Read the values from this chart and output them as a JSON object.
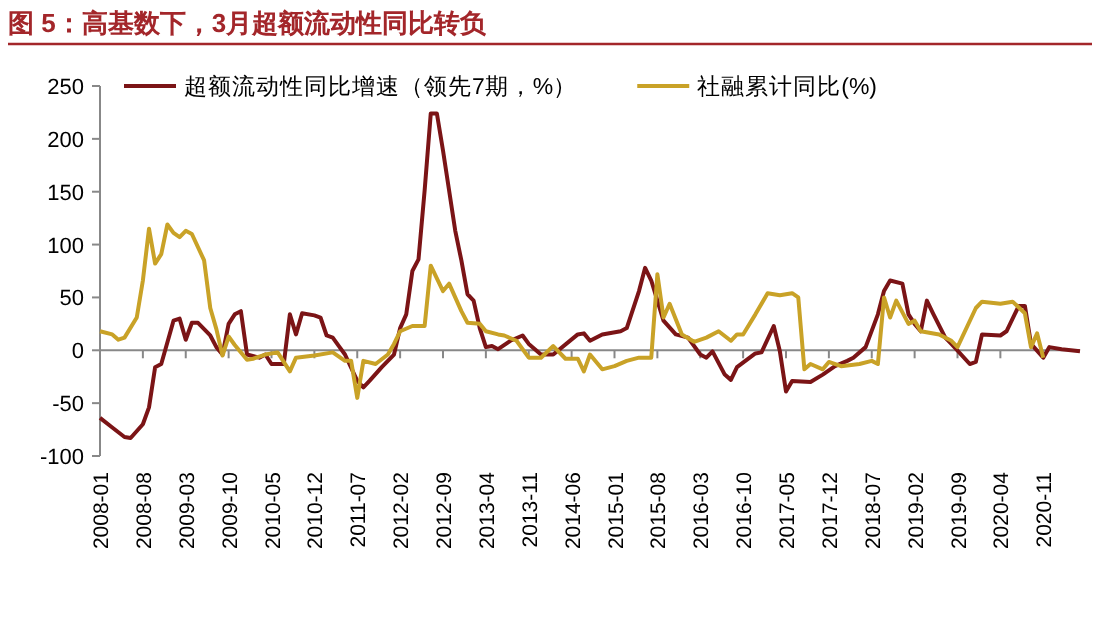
{
  "chart_data": {
    "type": "line",
    "title": "图 5：高基数下，3月超额流动性同比转负",
    "xlim": [
      "2008-01",
      "2021-05"
    ],
    "ylim": [
      -100,
      250
    ],
    "yticks": [
      -100,
      -50,
      0,
      50,
      100,
      150,
      200,
      250
    ],
    "xticks": [
      "2008-01",
      "2008-08",
      "2009-03",
      "2009-10",
      "2010-05",
      "2010-12",
      "2011-07",
      "2012-02",
      "2012-09",
      "2013-04",
      "2013-11",
      "2014-06",
      "2015-01",
      "2015-08",
      "2016-03",
      "2016-10",
      "2017-05",
      "2017-12",
      "2018-07",
      "2019-02",
      "2019-09",
      "2020-04",
      "2020-11"
    ],
    "legend": "top",
    "series": [
      {
        "name": "超额流动性同比增速（领先7期，%）",
        "color": "#7b1416",
        "x": [
          "2008-01",
          "2008-03",
          "2008-05",
          "2008-06",
          "2008-08",
          "2008-09",
          "2008-10",
          "2008-11",
          "2009-01",
          "2009-02",
          "2009-03",
          "2009-04",
          "2009-05",
          "2009-07",
          "2009-08",
          "2009-09",
          "2009-10",
          "2009-11",
          "2009-12",
          "2010-01",
          "2010-03",
          "2010-04",
          "2010-05",
          "2010-07",
          "2010-08",
          "2010-09",
          "2010-10",
          "2010-12",
          "2011-01",
          "2011-02",
          "2011-03",
          "2011-04",
          "2011-05",
          "2011-07",
          "2011-08",
          "2011-09",
          "2011-11",
          "2012-01",
          "2012-02",
          "2012-03",
          "2012-04",
          "2012-05",
          "2012-06",
          "2012-07",
          "2012-08",
          "2012-09",
          "2012-11",
          "2012-12",
          "2013-01",
          "2013-02",
          "2013-03",
          "2013-04",
          "2013-05",
          "2013-06",
          "2013-08",
          "2013-10",
          "2013-11",
          "2014-01",
          "2014-03",
          "2014-07",
          "2014-08",
          "2014-09",
          "2014-11",
          "2015-02",
          "2015-03",
          "2015-05",
          "2015-06",
          "2015-07",
          "2015-09",
          "2015-11",
          "2016-01",
          "2016-03",
          "2016-04",
          "2016-05",
          "2016-07",
          "2016-08",
          "2016-09",
          "2016-12",
          "2017-01",
          "2017-03",
          "2017-04",
          "2017-05",
          "2017-06",
          "2017-09",
          "2017-11",
          "2018-01",
          "2018-03",
          "2018-04",
          "2018-06",
          "2018-08",
          "2018-09",
          "2018-10",
          "2018-12",
          "2019-01",
          "2019-02",
          "2019-03",
          "2019-04",
          "2019-05",
          "2019-07",
          "2019-08",
          "2019-11",
          "2019-12",
          "2020-01",
          "2020-04",
          "2020-05",
          "2020-07",
          "2020-08",
          "2020-09",
          "2020-11",
          "2020-12",
          "2021-02",
          "2021-05"
        ],
        "values": [
          -64,
          -73,
          -82,
          -83,
          -70,
          -54,
          -16,
          -13,
          28,
          30,
          10,
          26,
          26,
          14,
          3,
          -4,
          25,
          34,
          37,
          -4,
          -7,
          -4,
          -13,
          -13,
          34,
          15,
          35,
          33,
          31,
          14,
          12,
          4,
          -4,
          -29,
          -35,
          -29,
          -16,
          -4,
          21,
          34,
          75,
          86,
          151,
          224,
          224,
          189,
          113,
          85,
          53,
          47,
          21,
          3,
          4,
          1,
          9,
          14,
          6,
          -4,
          -4,
          15,
          16,
          9,
          15,
          18,
          21,
          56,
          78,
          66,
          28,
          15,
          12,
          -4,
          -7,
          -1,
          -23,
          -28,
          -16,
          -3,
          -2,
          23,
          -1,
          -39,
          -29,
          -30,
          -23,
          -15,
          -10,
          -7,
          3,
          34,
          56,
          66,
          63,
          34,
          25,
          18,
          47,
          35,
          12,
          6,
          -13,
          -11,
          15,
          14,
          18,
          42,
          42,
          6,
          -7,
          3,
          1,
          -1
        ]
      },
      {
        "name": "社融累计同比(%)",
        "color": "#c9a227",
        "x": [
          "2008-01",
          "2008-03",
          "2008-04",
          "2008-05",
          "2008-07",
          "2008-08",
          "2008-09",
          "2008-10",
          "2008-11",
          "2008-12",
          "2009-01",
          "2009-02",
          "2009-03",
          "2009-04",
          "2009-06",
          "2009-07",
          "2009-08",
          "2009-09",
          "2009-10",
          "2009-11",
          "2010-01",
          "2010-02",
          "2010-04",
          "2010-06",
          "2010-08",
          "2010-09",
          "2010-12",
          "2011-03",
          "2011-05",
          "2011-06",
          "2011-07",
          "2011-08",
          "2011-10",
          "2011-12",
          "2012-01",
          "2012-02",
          "2012-04",
          "2012-06",
          "2012-07",
          "2012-09",
          "2012-10",
          "2012-12",
          "2013-01",
          "2013-03",
          "2013-04",
          "2013-06",
          "2013-07",
          "2013-09",
          "2013-11",
          "2014-01",
          "2014-03",
          "2014-05",
          "2014-07",
          "2014-08",
          "2014-09",
          "2014-11",
          "2015-01",
          "2015-03",
          "2015-05",
          "2015-07",
          "2015-08",
          "2015-09",
          "2015-10",
          "2015-12",
          "2016-02",
          "2016-04",
          "2016-06",
          "2016-08",
          "2016-09",
          "2016-10",
          "2016-12",
          "2017-02",
          "2017-04",
          "2017-06",
          "2017-07",
          "2017-08",
          "2017-09",
          "2017-11",
          "2017-12",
          "2018-02",
          "2018-05",
          "2018-07",
          "2018-08",
          "2018-09",
          "2018-10",
          "2018-11",
          "2019-01",
          "2019-02",
          "2019-03",
          "2019-06",
          "2019-08",
          "2019-09",
          "2019-12",
          "2020-01",
          "2020-04",
          "2020-06",
          "2020-08",
          "2020-09",
          "2020-10",
          "2020-11"
        ],
        "values": [
          18,
          15,
          10,
          12,
          31,
          66,
          115,
          82,
          91,
          119,
          111,
          107,
          113,
          110,
          85,
          40,
          20,
          -5,
          13,
          5,
          -9,
          -8,
          -4,
          -2,
          -20,
          -7,
          -5,
          -2,
          -10,
          -10,
          -45,
          -10,
          -13,
          -4,
          6,
          18,
          23,
          23,
          80,
          56,
          63,
          37,
          26,
          25,
          18,
          15,
          14,
          9,
          -7,
          -7,
          4,
          -8,
          -8,
          -20,
          -4,
          -18,
          -15,
          -10,
          -7,
          -7,
          72,
          31,
          44,
          15,
          8,
          12,
          18,
          9,
          15,
          15,
          34,
          54,
          52,
          54,
          50,
          -18,
          -13,
          -18,
          -11,
          -15,
          -13,
          -10,
          -13,
          50,
          31,
          47,
          25,
          28,
          18,
          15,
          9,
          3,
          40,
          46,
          44,
          46,
          35,
          3,
          16,
          -7
        ]
      }
    ]
  }
}
